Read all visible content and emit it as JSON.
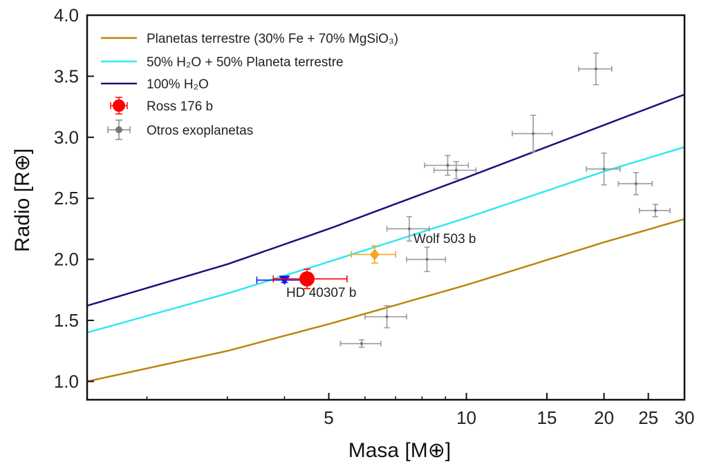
{
  "chart_data": {
    "type": "scatter",
    "xlabel": "Masa [M⊕]",
    "ylabel": "Radio [R⊕]",
    "x_scale": "log",
    "xlim": [
      1.48,
      30
    ],
    "ylim": [
      0.85,
      4.0
    ],
    "x_ticks": [
      5,
      10,
      15,
      20,
      25,
      30
    ],
    "y_ticks": [
      1.0,
      1.5,
      2.0,
      2.5,
      3.0,
      3.5,
      4.0
    ],
    "y_tick_labels": [
      "1.0",
      "1.5",
      "2.0",
      "2.5",
      "3.0",
      "3.5",
      "4.0"
    ],
    "grid": false,
    "legend_position": "top-left",
    "legend": {
      "terrestrial": "Planetas terrestre (30% Fe + 70% MgSiO₃)",
      "mixed": "50% H₂O + 50% Planeta terrestre",
      "water": "100% H₂O",
      "ross": "Ross 176 b",
      "others": "Otros exoplanetas"
    },
    "curves": [
      {
        "name": "Planetas terrestre (30% Fe + 70% MgSiO₃)",
        "color": "#b8860b",
        "x": [
          1.48,
          3,
          5,
          10,
          20,
          30
        ],
        "y": [
          1.0,
          1.25,
          1.47,
          1.79,
          2.14,
          2.33
        ]
      },
      {
        "name": "50% H₂O + 50% Planeta terrestre",
        "color": "#2ee8f0",
        "x": [
          1.48,
          3,
          5,
          10,
          20,
          30
        ],
        "y": [
          1.4,
          1.72,
          1.98,
          2.34,
          2.72,
          2.92
        ]
      },
      {
        "name": "100% H₂O",
        "color": "#14147a",
        "x": [
          1.48,
          3,
          5,
          10,
          20,
          30
        ],
        "y": [
          1.62,
          1.96,
          2.25,
          2.67,
          3.1,
          3.35
        ]
      }
    ],
    "highlighted": [
      {
        "name": "Ross 176 b",
        "x": 4.48,
        "y": 1.84,
        "xerr": [
          0.7,
          1.0
        ],
        "yerr": [
          0.08,
          0.08
        ],
        "color": "#ff0000",
        "marker": "circle"
      },
      {
        "name": "HD 40307 b",
        "x": 4.0,
        "y": 1.83,
        "xerr": [
          0.52,
          0.5
        ],
        "yerr": [
          0.02,
          0.02
        ],
        "color": "#1515ee",
        "marker": "triangle-down"
      },
      {
        "name": "Wolf 503 b",
        "x": 6.3,
        "y": 2.04,
        "xerr": [
          0.7,
          0.7
        ],
        "yerr": [
          0.07,
          0.07
        ],
        "color": "#f5a623",
        "marker": "diamond"
      }
    ],
    "annotations": [
      "Wolf 503 b",
      "HD 40307 b"
    ],
    "others": [
      {
        "x": 19.2,
        "y": 3.56,
        "xerr": [
          1.6,
          1.6
        ],
        "yerr": [
          0.13,
          0.13
        ]
      },
      {
        "x": 14.0,
        "y": 3.03,
        "xerr": [
          1.4,
          1.4
        ],
        "yerr": [
          0.15,
          0.15
        ]
      },
      {
        "x": 9.1,
        "y": 2.77,
        "xerr": [
          1.0,
          1.0
        ],
        "yerr": [
          0.08,
          0.08
        ]
      },
      {
        "x": 9.5,
        "y": 2.73,
        "xerr": [
          1.0,
          1.0
        ],
        "yerr": [
          0.07,
          0.07
        ]
      },
      {
        "x": 20.0,
        "y": 2.74,
        "xerr": [
          1.7,
          1.7
        ],
        "yerr": [
          0.13,
          0.13
        ]
      },
      {
        "x": 23.5,
        "y": 2.62,
        "xerr": [
          2.0,
          2.0
        ],
        "yerr": [
          0.09,
          0.09
        ]
      },
      {
        "x": 25.9,
        "y": 2.4,
        "xerr": [
          2.0,
          2.0
        ],
        "yerr": [
          0.05,
          0.05
        ]
      },
      {
        "x": 7.5,
        "y": 2.25,
        "xerr": [
          0.8,
          0.8
        ],
        "yerr": [
          0.1,
          0.1
        ]
      },
      {
        "x": 8.2,
        "y": 2.0,
        "xerr": [
          0.8,
          0.8
        ],
        "yerr": [
          0.1,
          0.1
        ]
      },
      {
        "x": 6.7,
        "y": 1.53,
        "xerr": [
          0.7,
          0.7
        ],
        "yerr": [
          0.09,
          0.09
        ]
      },
      {
        "x": 5.9,
        "y": 1.31,
        "xerr": [
          0.6,
          0.6
        ],
        "yerr": [
          0.03,
          0.03
        ]
      }
    ],
    "colors": {
      "others": "#888888",
      "axis": "#111111"
    }
  }
}
